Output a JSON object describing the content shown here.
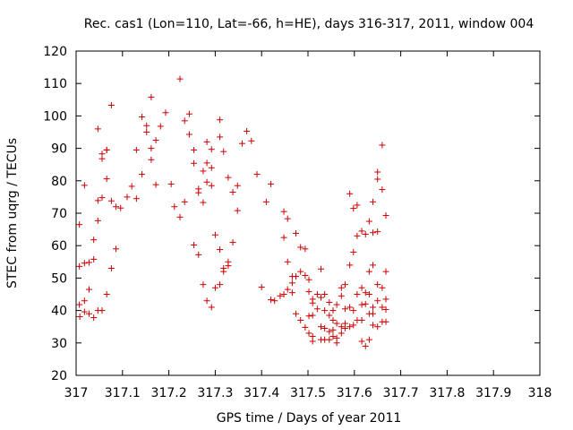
{
  "chart_data": {
    "type": "scatter",
    "title": "Rec. cas1 (Lon=110, Lat=-66, h=HE), days 316-317, 2011, window 004",
    "xlabel": "GPS time / Days of year 2011",
    "ylabel": "STEC from uqrg / TECUs",
    "xlim": [
      317,
      318
    ],
    "ylim": [
      20,
      120
    ],
    "xticks": [
      "317",
      "317.1",
      "317.2",
      "317.3",
      "317.4",
      "317.5",
      "317.6",
      "317.7",
      "317.8",
      "317.9",
      "318"
    ],
    "yticks": [
      "20",
      "30",
      "40",
      "50",
      "60",
      "70",
      "80",
      "90",
      "100",
      "110",
      "120"
    ],
    "grid": false,
    "marker": "+",
    "marker_color": "#cc0000",
    "series": [
      {
        "points": [
          [
            317.007,
            66.5
          ],
          [
            317.007,
            53.6
          ],
          [
            317.007,
            41.8
          ],
          [
            317.008,
            38.1
          ],
          [
            317.018,
            78.6
          ],
          [
            317.018,
            54.6
          ],
          [
            317.018,
            43.0
          ],
          [
            317.018,
            39.6
          ],
          [
            317.028,
            54.8
          ],
          [
            317.028,
            46.5
          ],
          [
            317.028,
            39.0
          ],
          [
            317.038,
            61.8
          ],
          [
            317.038,
            55.8
          ],
          [
            317.038,
            37.8
          ],
          [
            317.047,
            96.0
          ],
          [
            317.047,
            73.9
          ],
          [
            317.047,
            67.7
          ],
          [
            317.047,
            40.0
          ],
          [
            317.056,
            88.3
          ],
          [
            317.056,
            86.8
          ],
          [
            317.056,
            74.8
          ],
          [
            317.056,
            40.0
          ],
          [
            317.066,
            89.5
          ],
          [
            317.066,
            89.5
          ],
          [
            317.066,
            80.6
          ],
          [
            317.066,
            45.0
          ],
          [
            317.076,
            103.3
          ],
          [
            317.076,
            73.8
          ],
          [
            317.076,
            53.0
          ],
          [
            317.086,
            72.0
          ],
          [
            317.086,
            59.0
          ],
          [
            317.096,
            71.6
          ],
          [
            317.11,
            75.0
          ],
          [
            317.12,
            78.3
          ],
          [
            317.13,
            89.5
          ],
          [
            317.13,
            74.5
          ],
          [
            317.142,
            99.7
          ],
          [
            317.142,
            82.0
          ],
          [
            317.152,
            97.0
          ],
          [
            317.152,
            95.0
          ],
          [
            317.162,
            105.8
          ],
          [
            317.162,
            90.0
          ],
          [
            317.162,
            86.5
          ],
          [
            317.172,
            92.5
          ],
          [
            317.172,
            78.8
          ],
          [
            317.182,
            96.8
          ],
          [
            317.193,
            101.0
          ],
          [
            317.205,
            79.0
          ],
          [
            317.212,
            72.0
          ],
          [
            317.224,
            111.4
          ],
          [
            317.224,
            68.8
          ],
          [
            317.234,
            98.5
          ],
          [
            317.234,
            73.5
          ],
          [
            317.244,
            100.6
          ],
          [
            317.244,
            94.3
          ],
          [
            317.254,
            89.5
          ],
          [
            317.254,
            85.4
          ],
          [
            317.254,
            60.2
          ],
          [
            317.264,
            77.5
          ],
          [
            317.264,
            76.3
          ],
          [
            317.264,
            57.2
          ],
          [
            317.274,
            83.0
          ],
          [
            317.274,
            73.3
          ],
          [
            317.274,
            48.0
          ],
          [
            317.282,
            92.0
          ],
          [
            317.282,
            85.5
          ],
          [
            317.282,
            79.6
          ],
          [
            317.282,
            43.0
          ],
          [
            317.292,
            89.7
          ],
          [
            317.292,
            84.0
          ],
          [
            317.292,
            78.5
          ],
          [
            317.292,
            41.0
          ],
          [
            317.3,
            63.3
          ],
          [
            317.3,
            47.0
          ],
          [
            317.31,
            98.8
          ],
          [
            317.31,
            93.5
          ],
          [
            317.31,
            58.8
          ],
          [
            317.31,
            48.0
          ],
          [
            317.318,
            89.0
          ],
          [
            317.318,
            53.0
          ],
          [
            317.318,
            52.0
          ],
          [
            317.328,
            81.0
          ],
          [
            317.328,
            55.0
          ],
          [
            317.328,
            53.8
          ],
          [
            317.338,
            76.5
          ],
          [
            317.338,
            61.0
          ],
          [
            317.348,
            78.5
          ],
          [
            317.348,
            70.8
          ],
          [
            317.358,
            91.5
          ],
          [
            317.368,
            95.3
          ],
          [
            317.378,
            92.3
          ],
          [
            317.39,
            82.0
          ],
          [
            317.4,
            47.2
          ],
          [
            317.41,
            73.5
          ],
          [
            317.42,
            79.0
          ],
          [
            317.42,
            43.3
          ],
          [
            317.428,
            43.0
          ],
          [
            317.44,
            44.5
          ],
          [
            317.448,
            70.5
          ],
          [
            317.448,
            62.5
          ],
          [
            317.448,
            45.0
          ],
          [
            317.456,
            68.3
          ],
          [
            317.456,
            55.0
          ],
          [
            317.456,
            46.5
          ],
          [
            317.466,
            50.5
          ],
          [
            317.466,
            48.5
          ],
          [
            317.466,
            45.5
          ],
          [
            317.474,
            63.8
          ],
          [
            317.474,
            50.5
          ],
          [
            317.474,
            39.0
          ],
          [
            317.484,
            59.5
          ],
          [
            317.484,
            52.0
          ],
          [
            317.484,
            37.0
          ],
          [
            317.494,
            59.0
          ],
          [
            317.494,
            50.8
          ],
          [
            317.494,
            34.8
          ],
          [
            317.502,
            49.5
          ],
          [
            317.502,
            45.8
          ],
          [
            317.502,
            38.3
          ],
          [
            317.502,
            33.0
          ],
          [
            317.51,
            43.5
          ],
          [
            317.51,
            42.3
          ],
          [
            317.51,
            38.5
          ],
          [
            317.51,
            32.0
          ],
          [
            317.51,
            30.5
          ],
          [
            317.52,
            45.0
          ],
          [
            317.52,
            40.5
          ],
          [
            317.528,
            52.8
          ],
          [
            317.528,
            44.0
          ],
          [
            317.528,
            35.0
          ],
          [
            317.528,
            31.0
          ],
          [
            317.536,
            45.0
          ],
          [
            317.536,
            40.0
          ],
          [
            317.536,
            34.5
          ],
          [
            317.536,
            31.0
          ],
          [
            317.546,
            42.5
          ],
          [
            317.546,
            38.5
          ],
          [
            317.546,
            33.5
          ],
          [
            317.546,
            31.0
          ],
          [
            317.554,
            40.0
          ],
          [
            317.554,
            37.0
          ],
          [
            317.554,
            34.0
          ],
          [
            317.554,
            32.0
          ],
          [
            317.562,
            41.8
          ],
          [
            317.562,
            36.0
          ],
          [
            317.562,
            31.5
          ],
          [
            317.562,
            30.0
          ],
          [
            317.572,
            47.0
          ],
          [
            317.572,
            44.5
          ],
          [
            317.572,
            35.0
          ],
          [
            317.572,
            33.0
          ],
          [
            317.58,
            48.0
          ],
          [
            317.58,
            40.5
          ],
          [
            317.58,
            36.0
          ],
          [
            317.58,
            34.5
          ],
          [
            317.59,
            76.0
          ],
          [
            317.59,
            54.0
          ],
          [
            317.59,
            41.0
          ],
          [
            317.59,
            35.0
          ],
          [
            317.598,
            71.5
          ],
          [
            317.598,
            58.0
          ],
          [
            317.598,
            40.0
          ],
          [
            317.598,
            35.5
          ],
          [
            317.606,
            72.5
          ],
          [
            317.606,
            63.0
          ],
          [
            317.606,
            45.0
          ],
          [
            317.606,
            37.0
          ],
          [
            317.616,
            64.5
          ],
          [
            317.616,
            47.0
          ],
          [
            317.616,
            41.8
          ],
          [
            317.616,
            37.0
          ],
          [
            317.616,
            30.5
          ],
          [
            317.624,
            63.5
          ],
          [
            317.624,
            45.5
          ],
          [
            317.624,
            42.0
          ],
          [
            317.624,
            29.0
          ],
          [
            317.632,
            67.5
          ],
          [
            317.632,
            52.0
          ],
          [
            317.632,
            45.0
          ],
          [
            317.632,
            39.0
          ],
          [
            317.632,
            31.0
          ],
          [
            317.64,
            73.5
          ],
          [
            317.64,
            64.0
          ],
          [
            317.64,
            54.0
          ],
          [
            317.64,
            41.0
          ],
          [
            317.64,
            39.0
          ],
          [
            317.64,
            35.5
          ],
          [
            317.65,
            82.7
          ],
          [
            317.65,
            80.5
          ],
          [
            317.65,
            64.3
          ],
          [
            317.65,
            48.0
          ],
          [
            317.65,
            43.0
          ],
          [
            317.65,
            35.0
          ],
          [
            317.66,
            91.0
          ],
          [
            317.66,
            77.3
          ],
          [
            317.66,
            47.0
          ],
          [
            317.66,
            41.0
          ],
          [
            317.66,
            36.5
          ],
          [
            317.668,
            69.3
          ],
          [
            317.668,
            52.0
          ],
          [
            317.668,
            43.5
          ],
          [
            317.668,
            40.3
          ],
          [
            317.668,
            36.5
          ]
        ]
      }
    ]
  }
}
